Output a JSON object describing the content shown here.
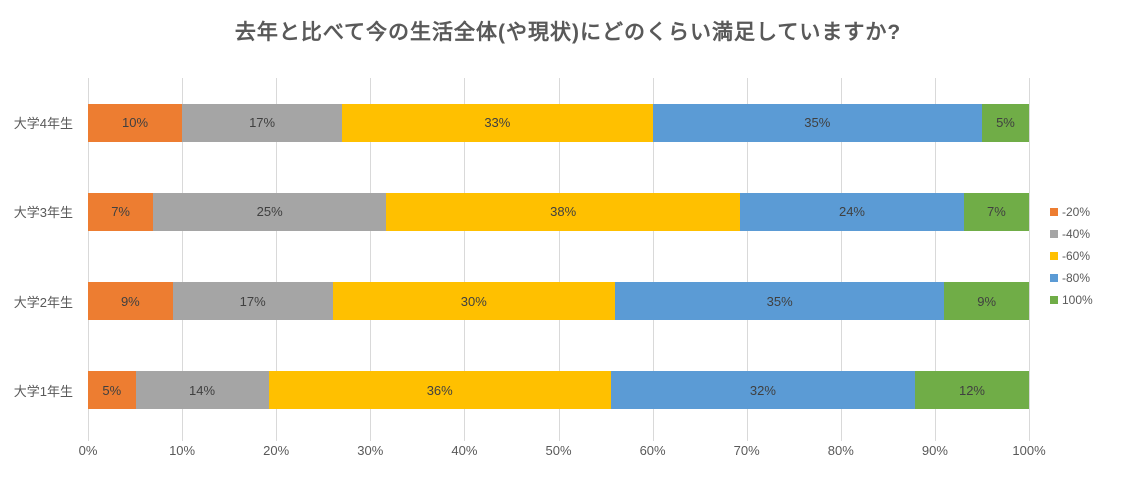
{
  "page": {
    "background": "#ffffff"
  },
  "chart_data": {
    "type": "bar",
    "variant": "horizontal-stacked",
    "title": "去年と比べて今の生活全体(や現状)にどのくらい満足していますか?",
    "categories": [
      "大学4年生",
      "大学3年生",
      "大学2年生",
      "大学1年生"
    ],
    "series": [
      {
        "name": "-20%",
        "color": "#ED7D31",
        "values": [
          10,
          7,
          9,
          5
        ]
      },
      {
        "name": "-40%",
        "color": "#A5A5A5",
        "values": [
          17,
          25,
          17,
          14
        ]
      },
      {
        "name": "-60%",
        "color": "#FFC000",
        "values": [
          33,
          38,
          30,
          36
        ]
      },
      {
        "name": "-80%",
        "color": "#5B9BD5",
        "values": [
          35,
          24,
          35,
          32
        ]
      },
      {
        "name": "100%",
        "color": "#70AD47",
        "values": [
          5,
          7,
          9,
          12
        ]
      }
    ],
    "x_ticks": [
      "0%",
      "10%",
      "20%",
      "30%",
      "40%",
      "50%",
      "60%",
      "70%",
      "80%",
      "90%",
      "100%"
    ],
    "xlim": [
      0,
      100
    ],
    "data_label_suffix": "%",
    "data_labels": true,
    "grid": true,
    "legend_position": "right",
    "gridline_color": "#D9D9D9",
    "axis_text_color": "#595959",
    "data_label_color": "#404040"
  }
}
